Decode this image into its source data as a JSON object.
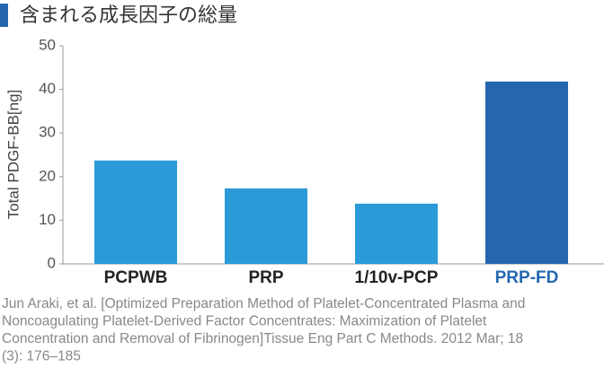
{
  "chart_data": {
    "type": "bar",
    "title": "含まれる成長因子の総量",
    "y_label": "Total PDGF-BB[ng]",
    "categories": [
      "PCPWB",
      "PRP",
      "1/10v-PCP",
      "PRP-FD"
    ],
    "values": [
      23.7,
      17.3,
      13.8,
      41.8
    ],
    "colors": [
      "#2b9ad8",
      "#2b9ad8",
      "#2b9ad8",
      "#2467b0"
    ],
    "label_colors": [
      "#222222",
      "#222222",
      "#222222",
      "#2467b0"
    ],
    "ylim": [
      0,
      50
    ],
    "yticks": [
      0,
      10,
      20,
      30,
      40,
      50
    ],
    "grid": false,
    "footnote": [
      "Jun Araki, et al. [Optimized Preparation Method of Platelet-Concentrated Plasma and",
      "Noncoagulating Platelet-Derived Factor Concentrates: Maximization of Platelet",
      "Concentration and Removal of Fibrinogen]Tissue Eng Part C Methods. 2012 Mar; 18",
      "(3): 176–185"
    ]
  }
}
